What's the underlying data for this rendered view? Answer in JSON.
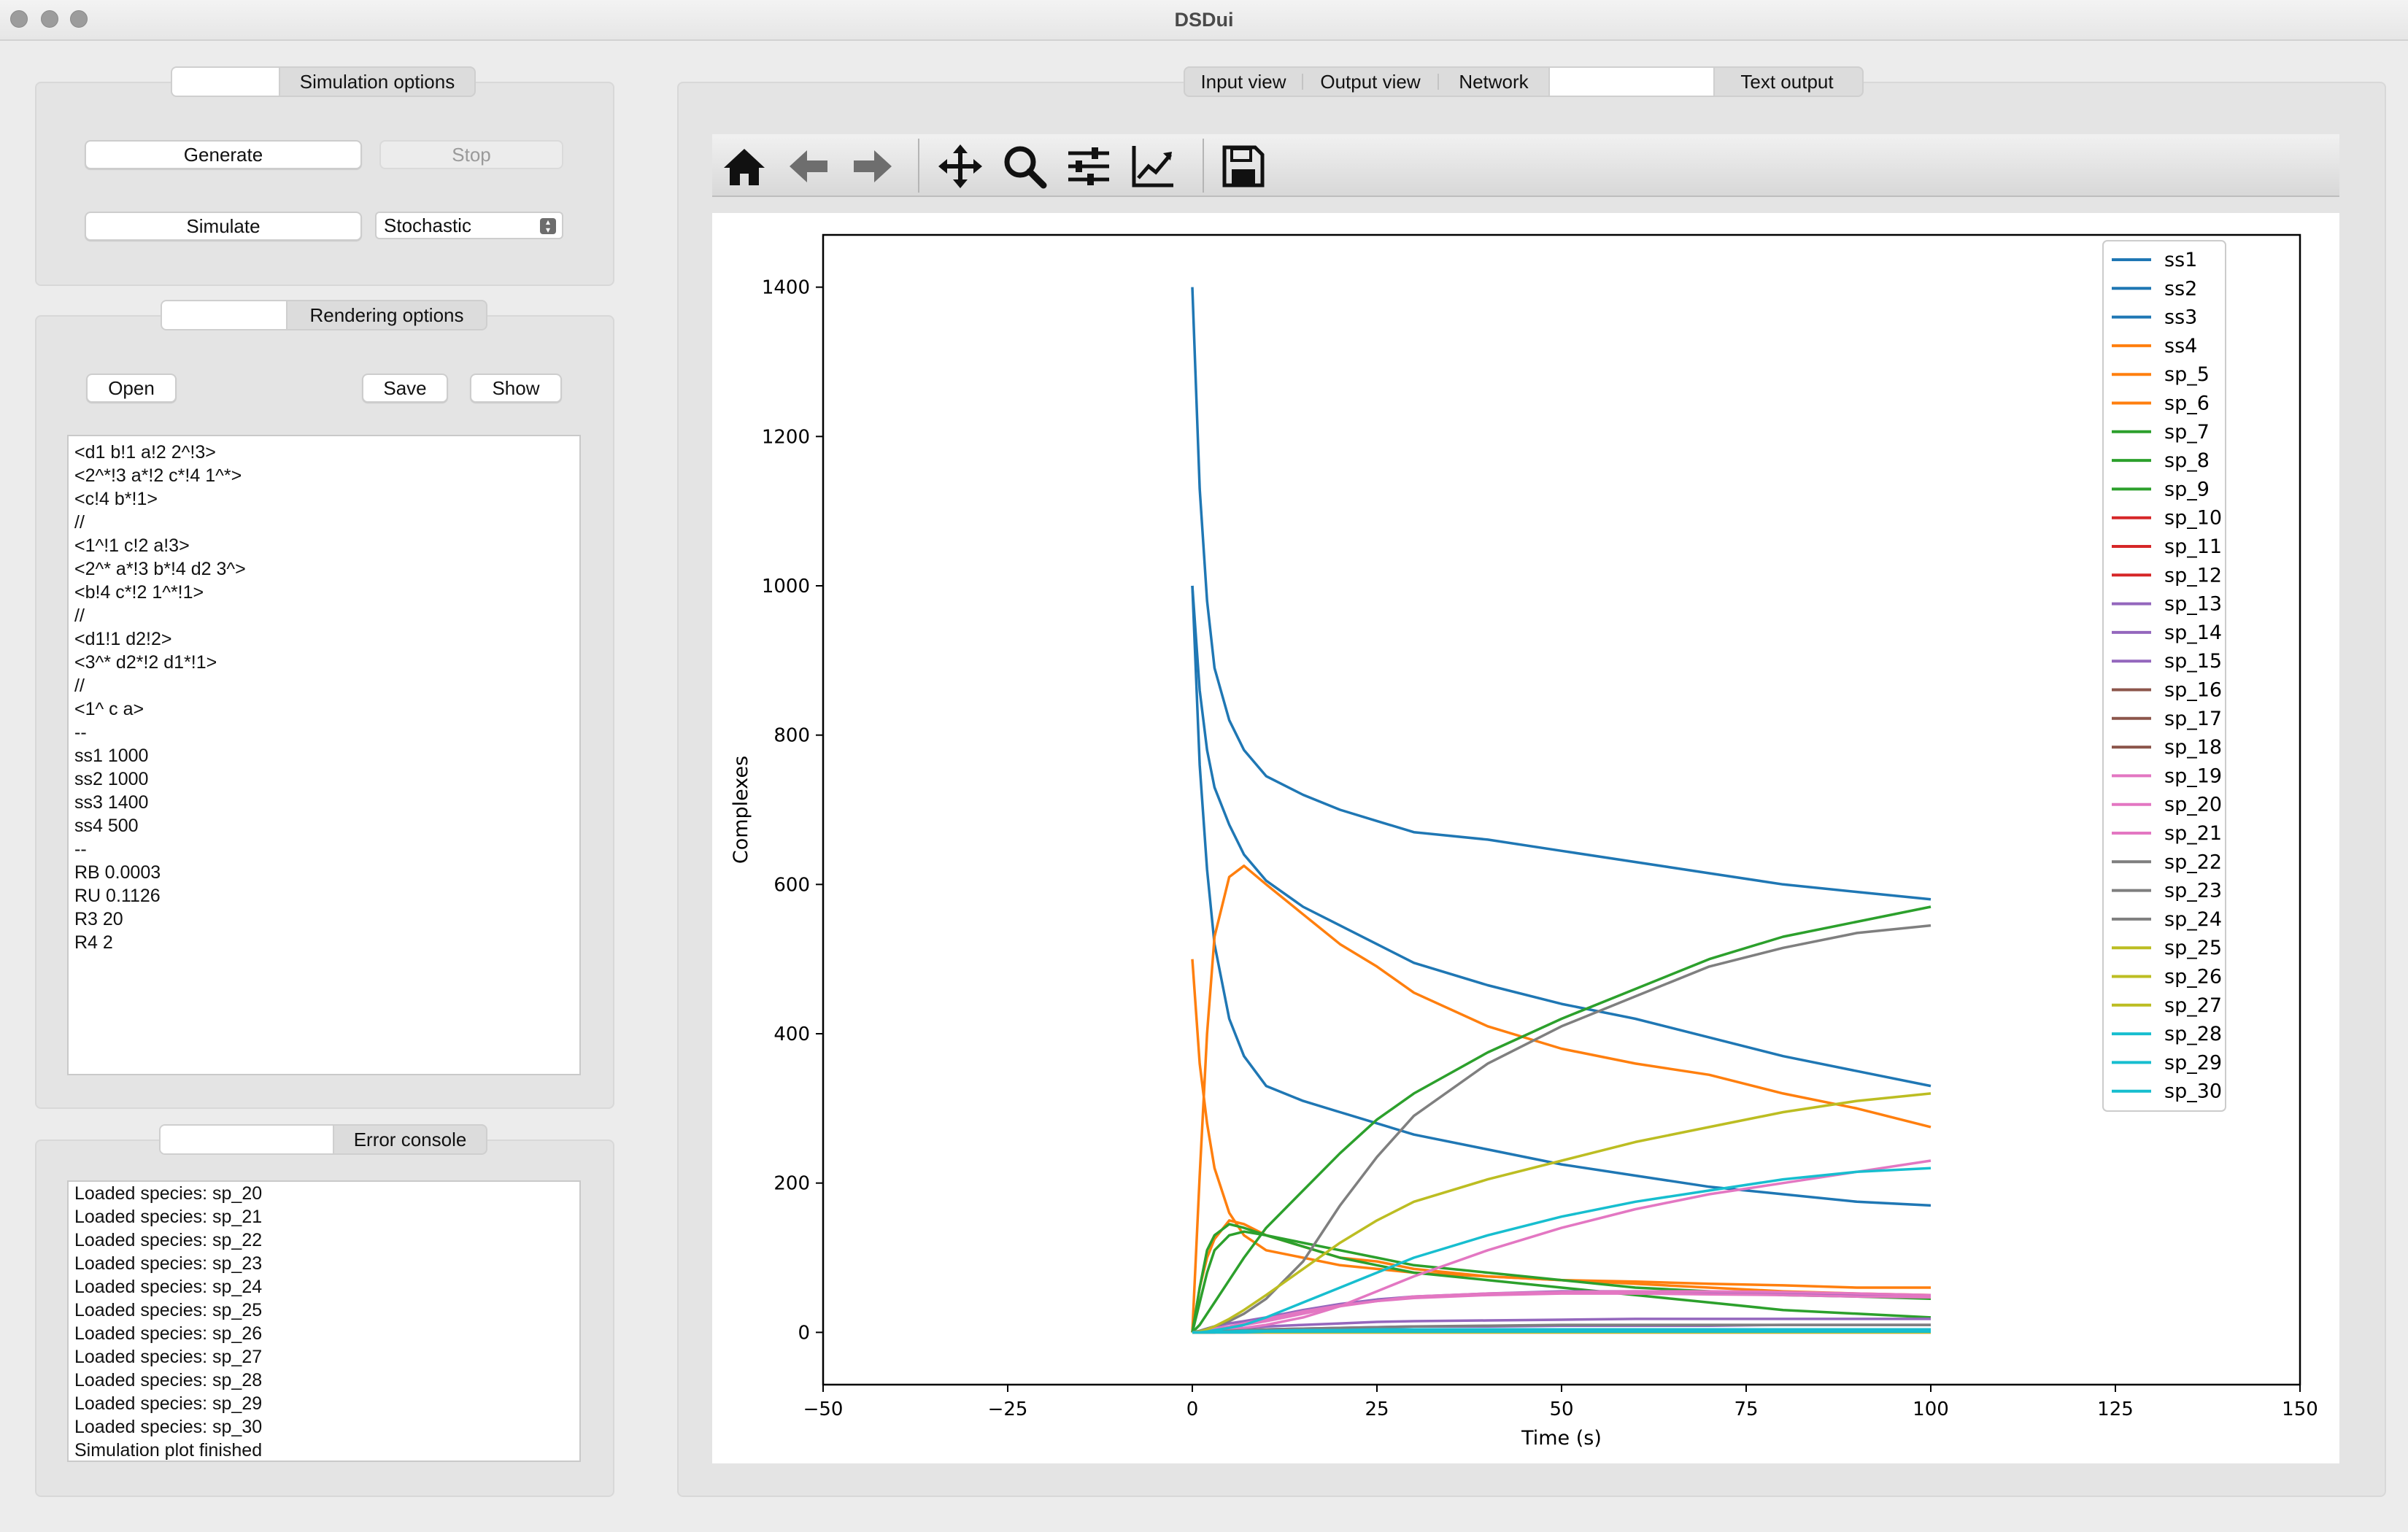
{
  "window": {
    "title": "DSDui"
  },
  "simulation": {
    "section_label": "Simulation options",
    "generate_label": "Generate",
    "stop_label": "Stop",
    "simulate_label": "Simulate",
    "mode_value": "Stochastic"
  },
  "rendering": {
    "section_label": "Rendering options",
    "open_label": "Open",
    "save_label": "Save",
    "show_label": "Show",
    "lines": [
      "<d1 b!1 a!2 2^!3>",
      "<2^*!3 a*!2 c*!4 1^*>",
      "<c!4 b*!1>",
      "//",
      "<1^!1 c!2 a!3>",
      "<2^* a*!3 b*!4 d2 3^>",
      "<b!4 c*!2 1^*!1>",
      "//",
      "<d1!1 d2!2>",
      "<3^* d2*!2 d1*!1>",
      "//",
      "<1^ c a>",
      "--",
      "ss1 1000",
      "ss2 1000",
      "ss3 1400",
      "ss4 500",
      "--",
      "RB 0.0003",
      "RU 0.1126",
      "R3 20",
      "R4 2"
    ]
  },
  "console": {
    "section_label": "Error console",
    "lines": [
      "Loaded species: sp_20",
      "Loaded species: sp_21",
      "Loaded species: sp_22",
      "Loaded species: sp_23",
      "Loaded species: sp_24",
      "Loaded species: sp_25",
      "Loaded species: sp_26",
      "Loaded species: sp_27",
      "Loaded species: sp_28",
      "Loaded species: sp_29",
      "Loaded species: sp_30",
      "Simulation plot finished"
    ]
  },
  "tabs": [
    "Input view",
    "Output view",
    "Network",
    "Text output"
  ],
  "toolbar_icons": [
    "home-icon",
    "back-arrow-icon",
    "forward-arrow-icon",
    "pan-icon",
    "zoom-icon",
    "configure-subplots-icon",
    "edit-axis-icon",
    "save-figure-icon"
  ],
  "chart_data": {
    "type": "line",
    "xlabel": "Time (s)",
    "ylabel": "Complexes",
    "xlim": [
      -50,
      150
    ],
    "ylim": [
      -70,
      1470
    ],
    "xticks": [
      -50,
      -25,
      0,
      25,
      50,
      75,
      100,
      125,
      150
    ],
    "yticks": [
      0,
      200,
      400,
      600,
      800,
      1000,
      1200,
      1400
    ],
    "grid": false,
    "legend_position": "top-right",
    "x": [
      0,
      1,
      2,
      3,
      5,
      7,
      10,
      15,
      20,
      25,
      30,
      40,
      50,
      60,
      70,
      80,
      90,
      100
    ],
    "series": [
      {
        "name": "ss1",
        "color": "#1f77b4",
        "values": [
          1000,
          860,
          780,
          730,
          680,
          640,
          605,
          570,
          545,
          520,
          495,
          465,
          440,
          420,
          395,
          370,
          350,
          330
        ]
      },
      {
        "name": "ss2",
        "color": "#1f77b4",
        "values": [
          1000,
          760,
          620,
          520,
          420,
          370,
          330,
          310,
          295,
          280,
          265,
          245,
          225,
          210,
          195,
          185,
          175,
          170
        ]
      },
      {
        "name": "ss3",
        "color": "#1f77b4",
        "values": [
          1400,
          1130,
          980,
          890,
          820,
          780,
          745,
          720,
          700,
          685,
          670,
          660,
          645,
          630,
          615,
          600,
          590,
          580
        ]
      },
      {
        "name": "ss4",
        "color": "#ff7f0e",
        "values": [
          500,
          360,
          280,
          220,
          160,
          130,
          110,
          100,
          90,
          85,
          80,
          75,
          70,
          68,
          65,
          63,
          60,
          60
        ]
      },
      {
        "name": "sp_5",
        "color": "#ff7f0e",
        "values": [
          0,
          210,
          400,
          530,
          610,
          625,
          600,
          560,
          520,
          490,
          455,
          410,
          380,
          360,
          345,
          320,
          300,
          275
        ]
      },
      {
        "name": "sp_6",
        "color": "#ff7f0e",
        "values": [
          0,
          60,
          100,
          125,
          150,
          145,
          130,
          115,
          100,
          95,
          85,
          75,
          70,
          65,
          60,
          55,
          52,
          50
        ]
      },
      {
        "name": "sp_7",
        "color": "#2ca02c",
        "values": [
          0,
          60,
          110,
          130,
          145,
          140,
          130,
          115,
          100,
          90,
          80,
          70,
          60,
          50,
          40,
          30,
          25,
          20
        ]
      },
      {
        "name": "sp_8",
        "color": "#2ca02c",
        "values": [
          0,
          10,
          25,
          40,
          70,
          100,
          140,
          190,
          240,
          285,
          320,
          375,
          420,
          460,
          500,
          530,
          550,
          570
        ]
      },
      {
        "name": "sp_9",
        "color": "#2ca02c",
        "values": [
          0,
          40,
          80,
          110,
          130,
          135,
          130,
          120,
          110,
          100,
          90,
          80,
          70,
          60,
          55,
          50,
          48,
          45
        ]
      },
      {
        "name": "sp_10",
        "color": "#d62728",
        "values": [
          0,
          0,
          0,
          1,
          1,
          1,
          1,
          1,
          1,
          1,
          1,
          1,
          1,
          1,
          1,
          1,
          1,
          1
        ]
      },
      {
        "name": "sp_11",
        "color": "#d62728",
        "values": [
          0,
          0,
          0,
          0,
          0,
          0,
          0,
          0,
          0,
          0,
          0,
          0,
          0,
          0,
          0,
          0,
          0,
          0
        ]
      },
      {
        "name": "sp_12",
        "color": "#d62728",
        "values": [
          0,
          0,
          0,
          0,
          1,
          1,
          1,
          1,
          1,
          1,
          1,
          1,
          1,
          1,
          1,
          1,
          1,
          1
        ]
      },
      {
        "name": "sp_13",
        "color": "#9467bd",
        "values": [
          0,
          1,
          2,
          3,
          5,
          6,
          8,
          10,
          12,
          14,
          15,
          16,
          17,
          18,
          18,
          18,
          18,
          18
        ]
      },
      {
        "name": "sp_14",
        "color": "#9467bd",
        "values": [
          0,
          0,
          1,
          1,
          2,
          3,
          4,
          5,
          6,
          7,
          8,
          8,
          9,
          9,
          9,
          10,
          10,
          10
        ]
      },
      {
        "name": "sp_15",
        "color": "#9467bd",
        "values": [
          0,
          2,
          5,
          8,
          12,
          15,
          20,
          30,
          38,
          44,
          48,
          52,
          55,
          55,
          54,
          52,
          50,
          48
        ]
      },
      {
        "name": "sp_16",
        "color": "#8c564b",
        "values": [
          0,
          0,
          0,
          1,
          1,
          1,
          2,
          2,
          2,
          2,
          2,
          3,
          3,
          3,
          3,
          3,
          3,
          3
        ]
      },
      {
        "name": "sp_17",
        "color": "#8c564b",
        "values": [
          0,
          0,
          0,
          0,
          0,
          0,
          0,
          0,
          0,
          0,
          0,
          0,
          0,
          0,
          0,
          0,
          0,
          0
        ]
      },
      {
        "name": "sp_18",
        "color": "#8c564b",
        "values": [
          0,
          0,
          0,
          0,
          1,
          1,
          1,
          1,
          1,
          1,
          1,
          1,
          1,
          1,
          1,
          1,
          1,
          1
        ]
      },
      {
        "name": "sp_19",
        "color": "#e377c2",
        "values": [
          0,
          1,
          2,
          4,
          7,
          10,
          15,
          25,
          35,
          42,
          48,
          52,
          54,
          55,
          55,
          54,
          52,
          50
        ]
      },
      {
        "name": "sp_20",
        "color": "#e377c2",
        "values": [
          0,
          0,
          1,
          2,
          4,
          6,
          10,
          20,
          35,
          55,
          75,
          110,
          140,
          165,
          185,
          200,
          215,
          230
        ]
      },
      {
        "name": "sp_21",
        "color": "#e377c2",
        "values": [
          0,
          1,
          3,
          5,
          8,
          12,
          18,
          28,
          36,
          42,
          46,
          50,
          52,
          52,
          51,
          50,
          48,
          47
        ]
      },
      {
        "name": "sp_22",
        "color": "#7f7f7f",
        "values": [
          0,
          2,
          5,
          8,
          15,
          25,
          45,
          95,
          170,
          235,
          290,
          360,
          410,
          450,
          490,
          515,
          535,
          545
        ]
      },
      {
        "name": "sp_23",
        "color": "#7f7f7f",
        "values": [
          0,
          0,
          1,
          1,
          2,
          3,
          4,
          5,
          6,
          7,
          8,
          9,
          10,
          10,
          10,
          10,
          10,
          10
        ]
      },
      {
        "name": "sp_24",
        "color": "#7f7f7f",
        "values": [
          0,
          0,
          0,
          0,
          1,
          1,
          1,
          1,
          2,
          2,
          2,
          2,
          2,
          2,
          2,
          2,
          2,
          2
        ]
      },
      {
        "name": "sp_25",
        "color": "#bcbd22",
        "values": [
          0,
          1,
          4,
          8,
          18,
          30,
          50,
          85,
          120,
          150,
          175,
          205,
          230,
          255,
          275,
          295,
          310,
          320
        ]
      },
      {
        "name": "sp_26",
        "color": "#bcbd22",
        "values": [
          0,
          0,
          0,
          1,
          1,
          1,
          2,
          2,
          2,
          2,
          2,
          2,
          2,
          2,
          2,
          2,
          2,
          2
        ]
      },
      {
        "name": "sp_27",
        "color": "#bcbd22",
        "values": [
          0,
          0,
          0,
          0,
          0,
          0,
          0,
          0,
          0,
          0,
          0,
          0,
          0,
          0,
          0,
          0,
          0,
          0
        ]
      },
      {
        "name": "sp_28",
        "color": "#17becf",
        "values": [
          0,
          0,
          1,
          3,
          6,
          10,
          20,
          40,
          60,
          80,
          100,
          130,
          155,
          175,
          190,
          205,
          215,
          220
        ]
      },
      {
        "name": "sp_29",
        "color": "#17becf",
        "values": [
          0,
          0,
          0,
          1,
          1,
          2,
          2,
          3,
          3,
          4,
          4,
          4,
          4,
          4,
          4,
          4,
          4,
          4
        ]
      },
      {
        "name": "sp_30",
        "color": "#17becf",
        "values": [
          0,
          0,
          0,
          0,
          0,
          0,
          1,
          1,
          1,
          1,
          1,
          1,
          1,
          1,
          1,
          1,
          1,
          1
        ]
      }
    ]
  }
}
